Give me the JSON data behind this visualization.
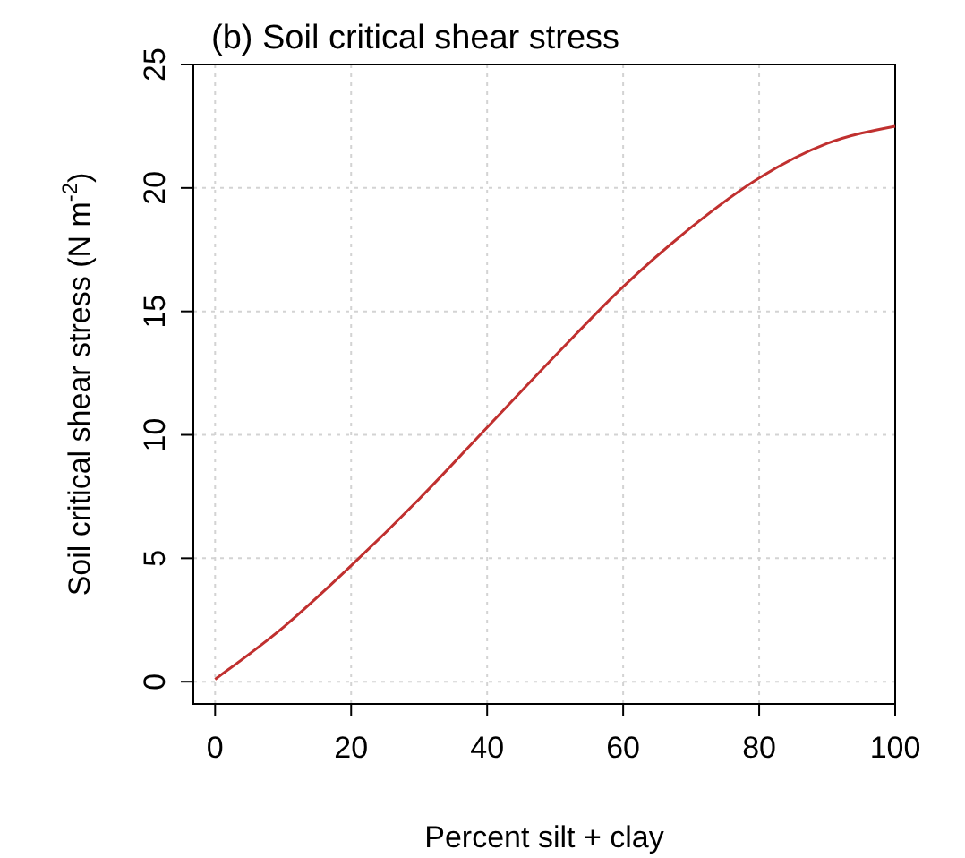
{
  "chart_data": {
    "type": "line",
    "title": "(b) Soil critical shear stress",
    "xlabel": "Percent silt + clay",
    "ylabel": "Soil critical shear stress (N m$^{-2}$)",
    "x": [
      0,
      10,
      20,
      30,
      40,
      50,
      60,
      70,
      80,
      90,
      100
    ],
    "series": [
      {
        "color": "#c0302f",
        "values": [
          0.1,
          2.2,
          4.7,
          7.4,
          10.3,
          13.2,
          16.0,
          18.4,
          20.4,
          21.8,
          22.5
        ]
      }
    ],
    "xlim": [
      -3.2,
      100
    ],
    "ylim": [
      -0.9,
      25
    ],
    "xticks": [
      0,
      20,
      40,
      60,
      80,
      100
    ],
    "yticks": [
      0,
      5,
      10,
      15,
      20,
      25
    ],
    "grid": true,
    "marker": "none",
    "line_style": "solid"
  }
}
